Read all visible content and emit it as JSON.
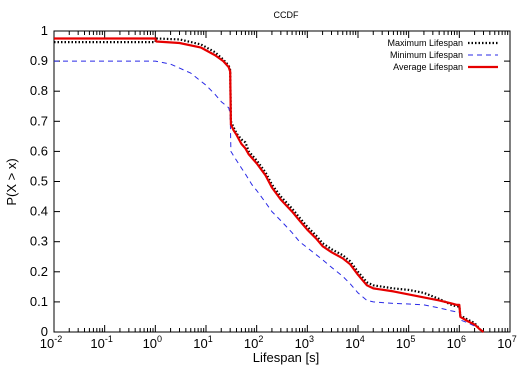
{
  "chart_data": {
    "type": "line",
    "title": "CCDF",
    "xlabel": "Lifespan [s]",
    "ylabel": "P(X > x)",
    "x_scale": "log",
    "xlim": [
      0.01,
      10000000
    ],
    "ylim": [
      0,
      1
    ],
    "x_ticks": [
      {
        "value": 0.01,
        "mantissa": "10",
        "exp": "-2"
      },
      {
        "value": 0.1,
        "mantissa": "10",
        "exp": "-1"
      },
      {
        "value": 1,
        "mantissa": "10",
        "exp": "0"
      },
      {
        "value": 10,
        "mantissa": "10",
        "exp": "1"
      },
      {
        "value": 100,
        "mantissa": "10",
        "exp": "2"
      },
      {
        "value": 1000,
        "mantissa": "10",
        "exp": "3"
      },
      {
        "value": 10000,
        "mantissa": "10",
        "exp": "4"
      },
      {
        "value": 100000,
        "mantissa": "10",
        "exp": "5"
      },
      {
        "value": 1000000,
        "mantissa": "10",
        "exp": "6"
      },
      {
        "value": 10000000,
        "mantissa": "10",
        "exp": "7"
      }
    ],
    "y_ticks": [
      {
        "value": 0,
        "label": "0"
      },
      {
        "value": 0.1,
        "label": "0.1"
      },
      {
        "value": 0.2,
        "label": "0.2"
      },
      {
        "value": 0.3,
        "label": "0.3"
      },
      {
        "value": 0.4,
        "label": "0.4"
      },
      {
        "value": 0.5,
        "label": "0.5"
      },
      {
        "value": 0.6,
        "label": "0.6"
      },
      {
        "value": 0.7,
        "label": "0.7"
      },
      {
        "value": 0.8,
        "label": "0.8"
      },
      {
        "value": 0.9,
        "label": "0.9"
      },
      {
        "value": 1,
        "label": "1"
      }
    ],
    "grid": false,
    "legend_position": "top-right",
    "series": [
      {
        "name": "Maximum Lifespan",
        "color": "#000000",
        "dash": "dotted",
        "points": [
          [
            0.01,
            0.963
          ],
          [
            1,
            0.963
          ],
          [
            1.05,
            0.975
          ],
          [
            3,
            0.972
          ],
          [
            8,
            0.955
          ],
          [
            15,
            0.93
          ],
          [
            22,
            0.905
          ],
          [
            28,
            0.885
          ],
          [
            30,
            0.87
          ],
          [
            31,
            0.7
          ],
          [
            35,
            0.68
          ],
          [
            40,
            0.66
          ],
          [
            50,
            0.64
          ],
          [
            60,
            0.63
          ],
          [
            70,
            0.6
          ],
          [
            100,
            0.57
          ],
          [
            150,
            0.53
          ],
          [
            200,
            0.49
          ],
          [
            300,
            0.45
          ],
          [
            500,
            0.41
          ],
          [
            700,
            0.38
          ],
          [
            1000,
            0.35
          ],
          [
            1500,
            0.32
          ],
          [
            2000,
            0.295
          ],
          [
            3000,
            0.275
          ],
          [
            5000,
            0.255
          ],
          [
            7000,
            0.235
          ],
          [
            10000,
            0.2
          ],
          [
            15000,
            0.165
          ],
          [
            20000,
            0.155
          ],
          [
            50000,
            0.145
          ],
          [
            100000,
            0.14
          ],
          [
            200000,
            0.13
          ],
          [
            400000,
            0.11
          ],
          [
            700000,
            0.09
          ],
          [
            900000,
            0.085
          ],
          [
            1000000,
            0.085
          ],
          [
            1050000,
            0.055
          ],
          [
            1500000,
            0.04
          ],
          [
            2000000,
            0.03
          ],
          [
            2500000,
            0.01
          ],
          [
            3000000,
            0.0
          ]
        ]
      },
      {
        "name": "Minimum Lifespan",
        "color": "#2a2ae6",
        "dash": "dashed",
        "points": [
          [
            0.01,
            0.9
          ],
          [
            1,
            0.9
          ],
          [
            2,
            0.89
          ],
          [
            5,
            0.86
          ],
          [
            10,
            0.82
          ],
          [
            15,
            0.79
          ],
          [
            20,
            0.765
          ],
          [
            28,
            0.745
          ],
          [
            30,
            0.725
          ],
          [
            31,
            0.6
          ],
          [
            35,
            0.585
          ],
          [
            40,
            0.57
          ],
          [
            50,
            0.545
          ],
          [
            60,
            0.525
          ],
          [
            80,
            0.49
          ],
          [
            100,
            0.47
          ],
          [
            150,
            0.43
          ],
          [
            200,
            0.4
          ],
          [
            300,
            0.37
          ],
          [
            500,
            0.33
          ],
          [
            700,
            0.3
          ],
          [
            1000,
            0.28
          ],
          [
            2000,
            0.24
          ],
          [
            3000,
            0.215
          ],
          [
            5000,
            0.185
          ],
          [
            7000,
            0.16
          ],
          [
            10000,
            0.13
          ],
          [
            15000,
            0.105
          ],
          [
            20000,
            0.1
          ],
          [
            50000,
            0.095
          ],
          [
            100000,
            0.093
          ],
          [
            200000,
            0.09
          ],
          [
            400000,
            0.08
          ],
          [
            700000,
            0.07
          ],
          [
            1000000,
            0.065
          ],
          [
            1050000,
            0.04
          ],
          [
            1500000,
            0.03
          ],
          [
            2000000,
            0.02
          ],
          [
            2500000,
            0.01
          ],
          [
            3000000,
            0.0
          ]
        ]
      },
      {
        "name": "Average Lifespan",
        "color": "#e60000",
        "dash": "solid",
        "points": [
          [
            0.01,
            0.975
          ],
          [
            1,
            0.975
          ],
          [
            1.05,
            0.965
          ],
          [
            3,
            0.96
          ],
          [
            8,
            0.945
          ],
          [
            15,
            0.92
          ],
          [
            22,
            0.9
          ],
          [
            28,
            0.88
          ],
          [
            30,
            0.865
          ],
          [
            31,
            0.69
          ],
          [
            35,
            0.67
          ],
          [
            40,
            0.655
          ],
          [
            50,
            0.625
          ],
          [
            60,
            0.61
          ],
          [
            70,
            0.59
          ],
          [
            100,
            0.56
          ],
          [
            150,
            0.52
          ],
          [
            200,
            0.48
          ],
          [
            300,
            0.44
          ],
          [
            500,
            0.4
          ],
          [
            700,
            0.37
          ],
          [
            1000,
            0.34
          ],
          [
            1500,
            0.31
          ],
          [
            2000,
            0.285
          ],
          [
            3000,
            0.265
          ],
          [
            5000,
            0.245
          ],
          [
            7000,
            0.225
          ],
          [
            10000,
            0.19
          ],
          [
            15000,
            0.155
          ],
          [
            20000,
            0.145
          ],
          [
            50000,
            0.135
          ],
          [
            100000,
            0.125
          ],
          [
            200000,
            0.115
          ],
          [
            400000,
            0.105
          ],
          [
            700000,
            0.095
          ],
          [
            900000,
            0.09
          ],
          [
            1000000,
            0.09
          ],
          [
            1050000,
            0.05
          ],
          [
            1500000,
            0.035
          ],
          [
            2000000,
            0.025
          ],
          [
            2500000,
            0.01
          ],
          [
            3000000,
            0.0
          ]
        ]
      }
    ]
  }
}
